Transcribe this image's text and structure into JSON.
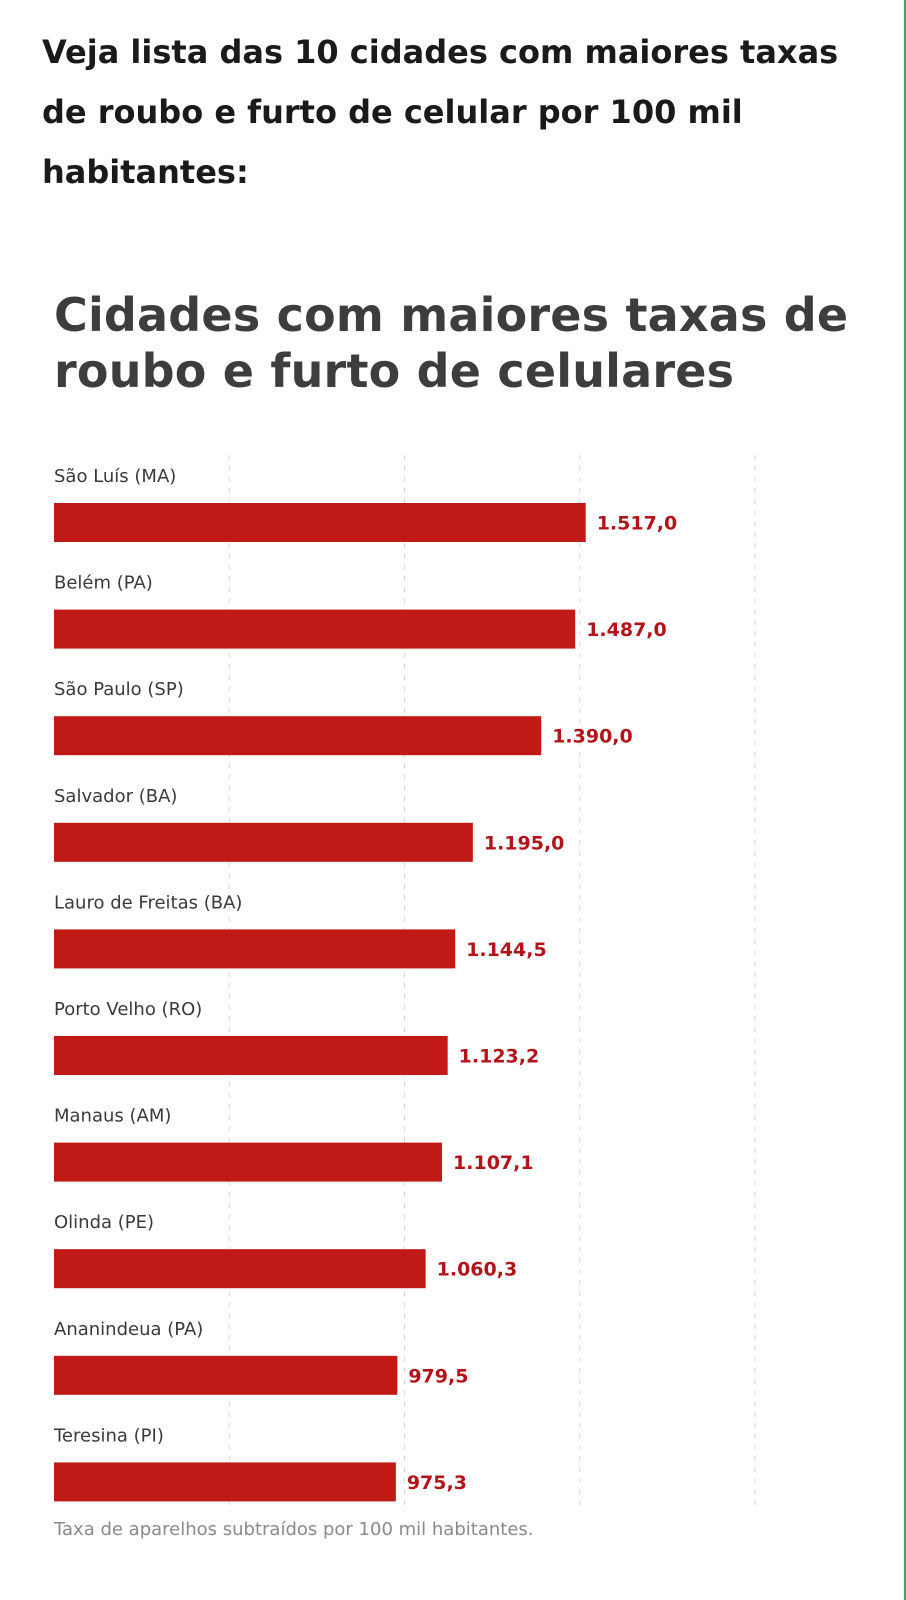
{
  "headline": "Veja lista das 10 cidades com maiores taxas de roubo e furto de celular por 100 mil habitantes:",
  "footnote": "Taxa de aparelhos subtraídos por 100 mil habitantes.",
  "colors": {
    "bar": "#c11915",
    "value_label": "#b3141a",
    "gridline": "#d7d7d7",
    "title": "#3d3d3d"
  },
  "chart_data": {
    "type": "bar",
    "orientation": "horizontal",
    "title": "Cidades com maiores taxas de roubo e furto de celulares",
    "xlabel": "",
    "ylabel": "",
    "grid": true,
    "xlim": [
      0,
      2000
    ],
    "categories": [
      "São Luís (MA)",
      "Belém (PA)",
      "São Paulo (SP)",
      "Salvador (BA)",
      "Lauro de Freitas (BA)",
      "Porto Velho (RO)",
      "Manaus (AM)",
      "Olinda (PE)",
      "Ananindeua (PA)",
      "Teresina (PI)"
    ],
    "values": [
      1517.0,
      1487.0,
      1390.0,
      1195.0,
      1144.5,
      1123.2,
      1107.1,
      1060.3,
      979.5,
      975.3
    ],
    "value_labels": [
      "1.517,0",
      "1.487,0",
      "1.390,0",
      "1.195,0",
      "1.144,5",
      "1.123,2",
      "1.107,1",
      "1.060,3",
      "979,5",
      "975,3"
    ]
  }
}
